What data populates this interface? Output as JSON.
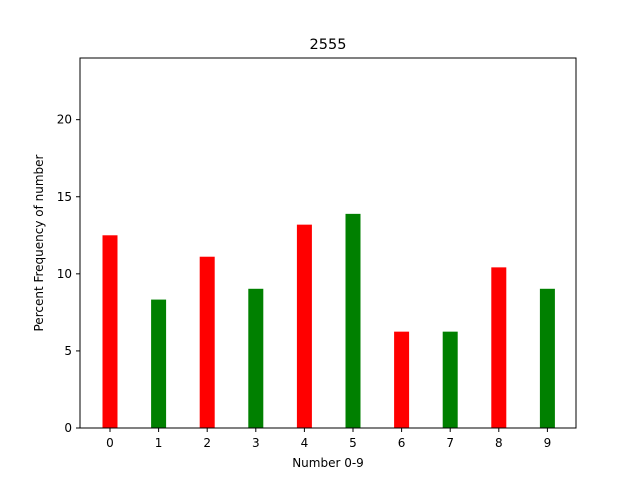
{
  "chart_data": {
    "type": "bar",
    "title": "2555",
    "xlabel": "Number 0-9",
    "ylabel": "Percent Frequency of number",
    "categories": [
      "0",
      "1",
      "2",
      "3",
      "4",
      "5",
      "6",
      "7",
      "8",
      "9"
    ],
    "values": [
      12.5,
      8.33,
      11.11,
      9.03,
      13.19,
      13.89,
      6.25,
      6.25,
      10.42,
      9.03
    ],
    "bar_colors": [
      "#ff0000",
      "#008000",
      "#ff0000",
      "#008000",
      "#ff0000",
      "#008000",
      "#ff0000",
      "#008000",
      "#ff0000",
      "#008000"
    ],
    "ylim": [
      0,
      24
    ],
    "yticks": [
      0,
      5,
      10,
      15,
      20
    ],
    "grid": false,
    "legend": "none"
  }
}
